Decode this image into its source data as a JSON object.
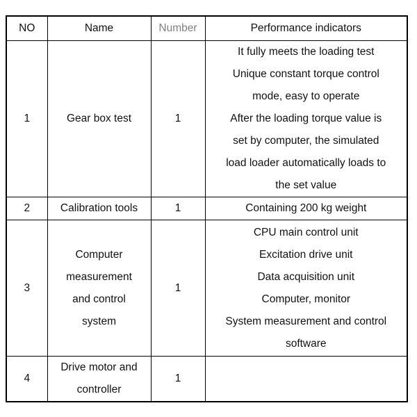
{
  "colors": {
    "text": "#111111",
    "muted_header_text": "#808080",
    "border": "#000000",
    "background": "#ffffff"
  },
  "table": {
    "headers": {
      "no": "NO",
      "name": "Name",
      "number": "Number",
      "performance": "Performance indicators"
    },
    "rows": [
      {
        "no": "1",
        "name": "Gear box test",
        "number": "1",
        "performance": [
          "It fully meets the loading test",
          "Unique constant torque control",
          "mode, easy to operate",
          "After the loading torque value is",
          "set by computer, the simulated",
          "load loader automatically loads to",
          "the set value"
        ]
      },
      {
        "no": "2",
        "name": "Calibration tools",
        "number": "1",
        "performance": "Containing 200 kg weight"
      },
      {
        "no": "3",
        "name": [
          "Computer",
          "measurement",
          "and control",
          "system"
        ],
        "number": "1",
        "performance": [
          "CPU main control unit",
          "Excitation drive unit",
          "Data acquisition unit",
          "Computer, monitor",
          "System measurement and control",
          "software"
        ]
      },
      {
        "no": "4",
        "name": [
          "Drive motor and",
          "controller"
        ],
        "number": "1",
        "performance": ""
      }
    ]
  }
}
